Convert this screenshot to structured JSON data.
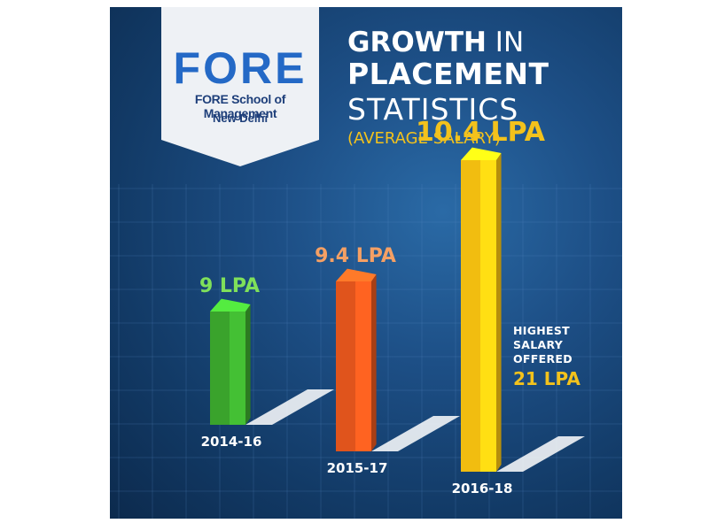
{
  "logo": {
    "mark_text": "FORE",
    "institute_name": "FORE School of Management",
    "city": "New Delhi"
  },
  "title": {
    "line1_bold": "GROWTH",
    "line1_rest": " IN",
    "line2": "PLACEMENT",
    "line3": "STATISTICS",
    "subtitle": "(AVERAGE SALARY)"
  },
  "note": {
    "line1": "HIGHEST",
    "line2": "SALARY",
    "line3": "OFFERED",
    "value": "21 LPA"
  },
  "colors": {
    "background": "#123a66",
    "accent_yellow": "#f3c21c",
    "bar_green": "#3aa32c",
    "bar_orange": "#e0541c",
    "bar_yellow": "#f1bd10"
  },
  "chart_data": {
    "type": "bar",
    "categories": [
      "2014-16",
      "2015-17",
      "2016-18"
    ],
    "values": [
      9,
      9.4,
      10.4
    ],
    "value_labels": [
      "9 LPA",
      "9.4 LPA",
      "10.4 LPA"
    ],
    "unit": "LPA",
    "title": "GROWTH IN PLACEMENT STATISTICS",
    "subtitle": "(AVERAGE SALARY)",
    "bar_colors": [
      "#3aa32c",
      "#e0541c",
      "#f1bd10"
    ],
    "label_colors": [
      "#7fe05a",
      "#f5a064",
      "#f3c21c"
    ],
    "grid": true,
    "legend": "none"
  }
}
